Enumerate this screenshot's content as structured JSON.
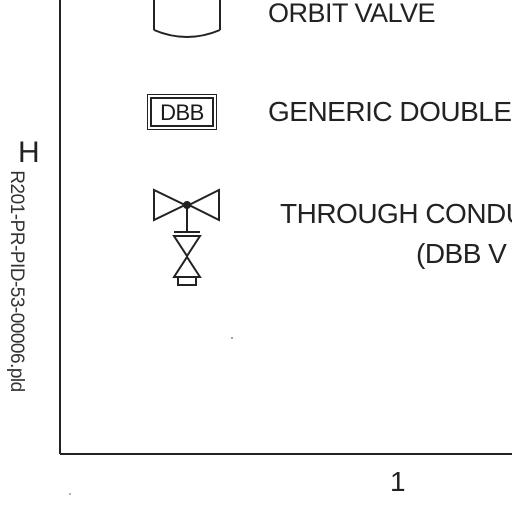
{
  "legend": {
    "orbit_valve": {
      "label": "ORBIT VALVE",
      "symbol": "orbit-valve-icon"
    },
    "generic_dbb": {
      "label": "GENERIC DOUBLE",
      "symbol_text": "DBB"
    },
    "through_conduit": {
      "label_line1": "THROUGH CONDU",
      "label_line2": "(DBB V",
      "symbol": "through-conduit-dbb-icon"
    }
  },
  "grid": {
    "row_label": "H",
    "column_label": "1"
  },
  "drawing_number": "R201-PR-PID-53-00006.pld"
}
